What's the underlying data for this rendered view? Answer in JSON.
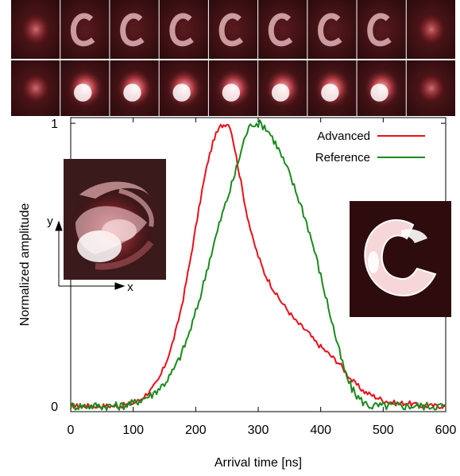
{
  "chart_data": {
    "type": "line",
    "title": "",
    "xlabel": "Arrival time [ns]",
    "ylabel": "Normalized amplitude",
    "xlim": [
      0,
      600
    ],
    "ylim": [
      -0.02,
      1.02
    ],
    "xticks": [
      0,
      100,
      200,
      300,
      400,
      500,
      600
    ],
    "xtick_labels": [
      "0",
      "100",
      "200",
      "300",
      "400",
      "500",
      "600"
    ],
    "yticks": [
      0,
      1
    ],
    "ytick_labels": [
      "0",
      "1"
    ],
    "grid": false,
    "legend_position": "top-right",
    "series": [
      {
        "name": "Advanced",
        "color": "#e8101a",
        "x": [
          0,
          20,
          40,
          60,
          80,
          100,
          110,
          120,
          130,
          140,
          150,
          160,
          170,
          180,
          190,
          200,
          210,
          220,
          230,
          240,
          250,
          255,
          260,
          270,
          280,
          290,
          300,
          310,
          320,
          330,
          340,
          350,
          360,
          370,
          380,
          390,
          400,
          410,
          420,
          430,
          440,
          450,
          460,
          470,
          480,
          490,
          500,
          520,
          540,
          560,
          580,
          600
        ],
        "y": [
          0.0,
          0.0,
          0.0,
          0.0,
          0.0,
          0.01,
          0.02,
          0.04,
          0.06,
          0.09,
          0.14,
          0.2,
          0.28,
          0.38,
          0.5,
          0.63,
          0.76,
          0.87,
          0.95,
          0.99,
          1.0,
          0.99,
          0.94,
          0.82,
          0.7,
          0.6,
          0.53,
          0.47,
          0.43,
          0.39,
          0.36,
          0.33,
          0.3,
          0.28,
          0.26,
          0.23,
          0.21,
          0.19,
          0.17,
          0.15,
          0.12,
          0.09,
          0.07,
          0.05,
          0.04,
          0.03,
          0.02,
          0.01,
          0.01,
          0.0,
          0.0,
          0.0
        ]
      },
      {
        "name": "Reference",
        "color": "#1b8a1b",
        "x": [
          0,
          20,
          40,
          60,
          80,
          100,
          110,
          120,
          130,
          140,
          150,
          160,
          170,
          180,
          190,
          200,
          210,
          220,
          230,
          240,
          250,
          260,
          270,
          280,
          290,
          300,
          310,
          320,
          330,
          340,
          350,
          360,
          370,
          380,
          390,
          400,
          410,
          420,
          430,
          440,
          450,
          460,
          470,
          480,
          490,
          500,
          520,
          540,
          560,
          580,
          600
        ],
        "y": [
          0.0,
          0.0,
          0.0,
          0.0,
          0.0,
          0.01,
          0.02,
          0.03,
          0.04,
          0.06,
          0.08,
          0.11,
          0.15,
          0.2,
          0.26,
          0.33,
          0.41,
          0.5,
          0.58,
          0.66,
          0.73,
          0.8,
          0.88,
          0.96,
          1.0,
          1.0,
          0.99,
          0.96,
          0.92,
          0.87,
          0.82,
          0.76,
          0.7,
          0.63,
          0.55,
          0.46,
          0.37,
          0.28,
          0.19,
          0.11,
          0.06,
          0.03,
          0.01,
          0.0,
          0.0,
          0.0,
          0.0,
          0.0,
          0.0,
          0.0,
          0.0
        ]
      }
    ],
    "inset_annotations": {
      "axis_x_label": "x",
      "axis_y_label": "y"
    }
  }
}
